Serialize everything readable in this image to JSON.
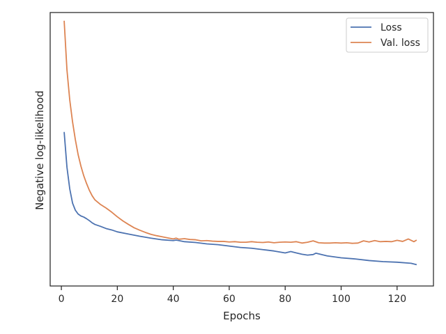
{
  "chart_data": {
    "type": "line",
    "title": "",
    "xlabel": "Epochs",
    "ylabel": "Negative log-likelihood",
    "xlim": [
      -4,
      133
    ],
    "ylim": [
      0.0,
      1.0
    ],
    "x_ticks": [
      0,
      20,
      40,
      60,
      80,
      100,
      120
    ],
    "y_ticks_shown": false,
    "grid": false,
    "legend_position": "top-right",
    "colors": {
      "Loss": "#4c72b0",
      "Val. loss": "#dd8452"
    },
    "series": [
      {
        "name": "Loss",
        "x": [
          1,
          2,
          3,
          4,
          5,
          6,
          7,
          8,
          9,
          10,
          11,
          12,
          14,
          16,
          18,
          20,
          24,
          28,
          32,
          36,
          40,
          41,
          44,
          48,
          52,
          56,
          60,
          64,
          68,
          72,
          76,
          80,
          82,
          84,
          86,
          88,
          90,
          91,
          95,
          100,
          105,
          110,
          115,
          120,
          125,
          127
        ],
        "values": [
          0.563,
          0.434,
          0.355,
          0.303,
          0.277,
          0.263,
          0.256,
          0.252,
          0.246,
          0.239,
          0.231,
          0.225,
          0.218,
          0.21,
          0.205,
          0.198,
          0.19,
          0.182,
          0.175,
          0.169,
          0.166,
          0.168,
          0.162,
          0.159,
          0.154,
          0.151,
          0.146,
          0.141,
          0.138,
          0.133,
          0.128,
          0.121,
          0.126,
          0.121,
          0.116,
          0.113,
          0.115,
          0.12,
          0.11,
          0.103,
          0.099,
          0.093,
          0.089,
          0.087,
          0.083,
          0.078
        ]
      },
      {
        "name": "Val. loss",
        "x": [
          1,
          2,
          3,
          4,
          5,
          6,
          7,
          8,
          9,
          10,
          11,
          12,
          14,
          16,
          18,
          20,
          22,
          24,
          26,
          28,
          30,
          32,
          34,
          36,
          38,
          40,
          41,
          42,
          44,
          46,
          48,
          50,
          52,
          54,
          56,
          58,
          60,
          62,
          64,
          66,
          68,
          70,
          72,
          74,
          76,
          78,
          80,
          82,
          84,
          86,
          88,
          90,
          92,
          94,
          96,
          98,
          100,
          102,
          104,
          106,
          108,
          110,
          112,
          114,
          116,
          118,
          120,
          122,
          124,
          126,
          127
        ],
        "values": [
          0.97,
          0.79,
          0.68,
          0.6,
          0.535,
          0.48,
          0.438,
          0.403,
          0.375,
          0.35,
          0.33,
          0.315,
          0.298,
          0.285,
          0.27,
          0.253,
          0.238,
          0.225,
          0.213,
          0.204,
          0.196,
          0.189,
          0.184,
          0.18,
          0.176,
          0.172,
          0.175,
          0.171,
          0.173,
          0.17,
          0.169,
          0.165,
          0.166,
          0.164,
          0.163,
          0.163,
          0.161,
          0.162,
          0.16,
          0.16,
          0.162,
          0.16,
          0.159,
          0.161,
          0.158,
          0.16,
          0.161,
          0.16,
          0.162,
          0.157,
          0.16,
          0.165,
          0.158,
          0.157,
          0.157,
          0.158,
          0.157,
          0.158,
          0.156,
          0.157,
          0.165,
          0.161,
          0.166,
          0.162,
          0.163,
          0.162,
          0.167,
          0.163,
          0.172,
          0.162,
          0.168
        ]
      }
    ]
  }
}
